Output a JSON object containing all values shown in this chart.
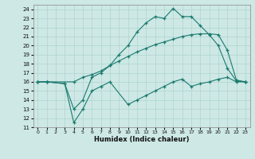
{
  "xlabel": "Humidex (Indice chaleur)",
  "bg_color": "#cde8e5",
  "grid_color": "#afd4d0",
  "line_color": "#1a7a6e",
  "xlim": [
    -0.5,
    23.5
  ],
  "ylim": [
    11,
    24.5
  ],
  "xticks": [
    0,
    1,
    2,
    3,
    4,
    5,
    6,
    7,
    8,
    9,
    10,
    11,
    12,
    13,
    14,
    15,
    16,
    17,
    18,
    19,
    20,
    21,
    22,
    23
  ],
  "yticks": [
    11,
    12,
    13,
    14,
    15,
    16,
    17,
    18,
    19,
    20,
    21,
    22,
    23,
    24
  ],
  "line_max_x": [
    0,
    1,
    3,
    4,
    5,
    6,
    7,
    8,
    9,
    10,
    11,
    12,
    13,
    14,
    15,
    16,
    17,
    18,
    19,
    20,
    21,
    22,
    23
  ],
  "line_max_y": [
    16.0,
    16.0,
    15.8,
    13.0,
    14.0,
    16.5,
    17.0,
    17.8,
    19.0,
    20.0,
    21.5,
    22.5,
    23.2,
    23.0,
    24.1,
    23.2,
    23.2,
    22.2,
    21.2,
    20.0,
    17.5,
    16.1,
    16.0
  ],
  "line_mean_x": [
    0,
    1,
    4,
    5,
    6,
    7,
    8,
    9,
    10,
    11,
    12,
    13,
    14,
    15,
    16,
    17,
    18,
    19,
    20,
    21,
    22,
    23
  ],
  "line_mean_y": [
    16.0,
    16.0,
    16.0,
    16.5,
    16.8,
    17.2,
    17.8,
    18.3,
    18.8,
    19.3,
    19.7,
    20.1,
    20.4,
    20.7,
    21.0,
    21.2,
    21.3,
    21.3,
    21.2,
    19.5,
    16.2,
    16.0
  ],
  "line_min_x": [
    0,
    1,
    3,
    4,
    5,
    6,
    7,
    8,
    10,
    11,
    12,
    13,
    14,
    15,
    16,
    17,
    18,
    19,
    20,
    21,
    22,
    23
  ],
  "line_min_y": [
    16.0,
    16.0,
    15.8,
    11.5,
    13.0,
    15.0,
    15.5,
    16.0,
    13.5,
    14.0,
    14.5,
    15.0,
    15.5,
    16.0,
    16.3,
    15.5,
    15.8,
    16.0,
    16.3,
    16.5,
    16.0,
    16.0
  ]
}
